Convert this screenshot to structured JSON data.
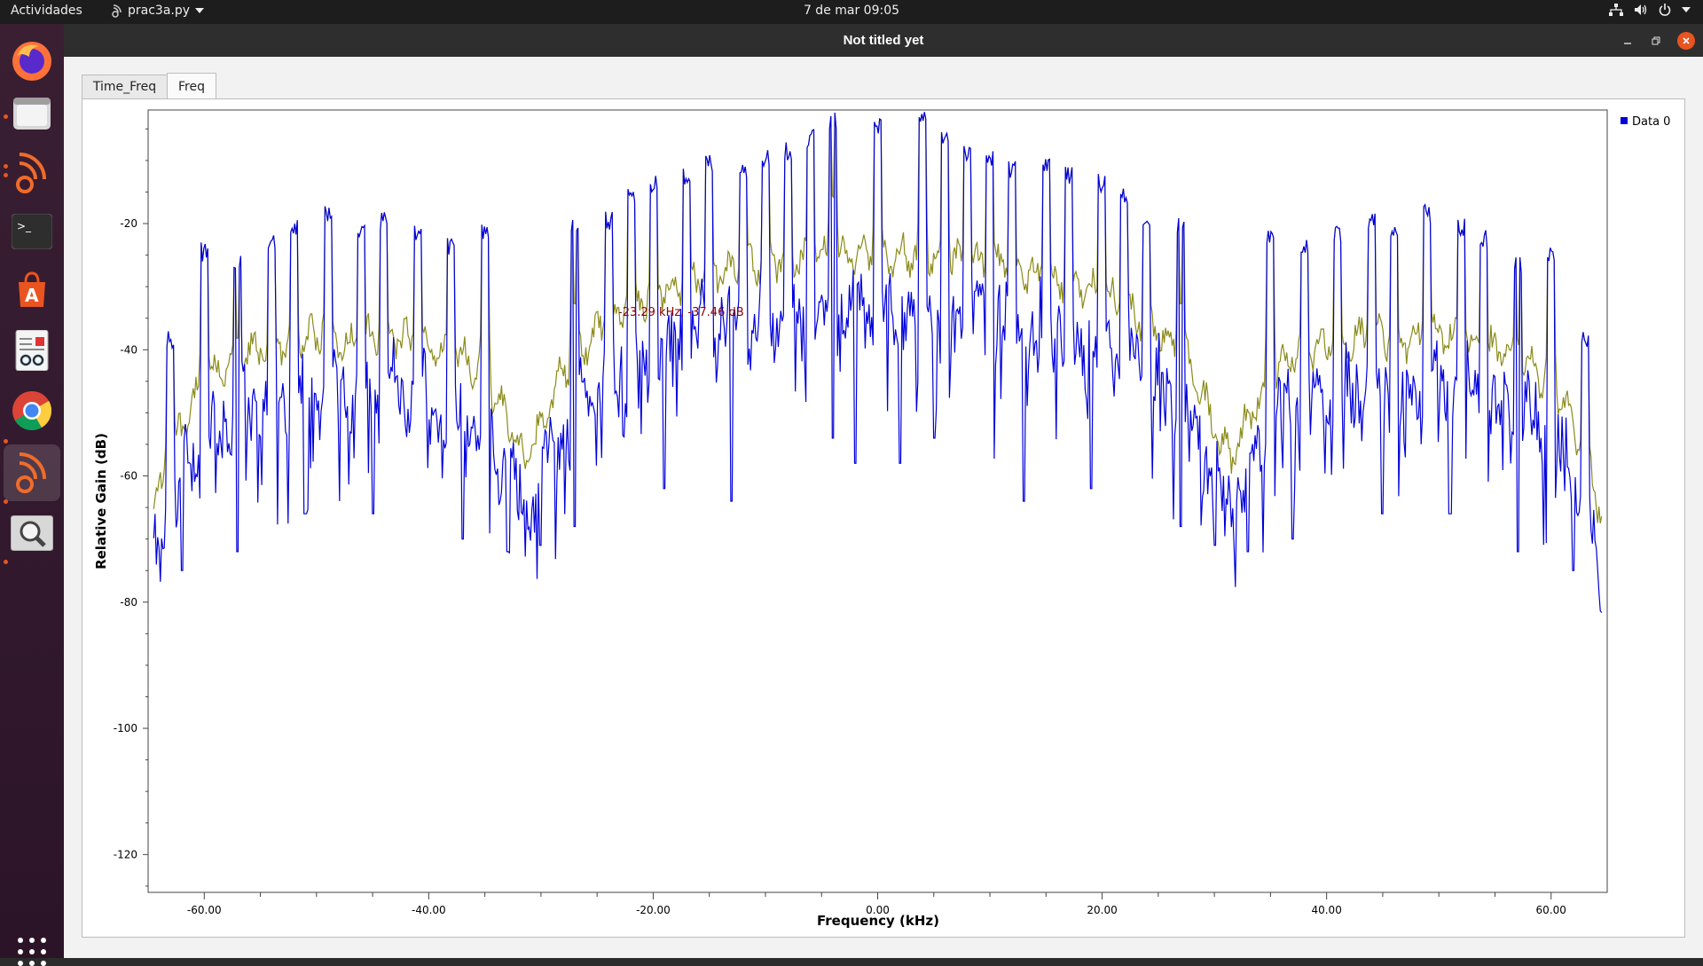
{
  "topbar": {
    "activities": "Actividades",
    "app_name": "prac3a.py",
    "clock": "7 de mar  09:05"
  },
  "window": {
    "title": "Not titled yet"
  },
  "tabs": [
    {
      "label": "Time_Freq",
      "selected": false
    },
    {
      "label": "Freq",
      "selected": true
    }
  ],
  "dock": {
    "items": [
      "firefox-icon",
      "files-icon",
      "gnuradio-icon",
      "terminal-icon",
      "software-center-icon",
      "document-viewer-icon",
      "chrome-icon",
      "gnuradio-icon",
      "image-viewer-icon"
    ],
    "apps_grid": "show-applications-icon"
  },
  "chart_data": {
    "type": "line",
    "xlabel": "Frequency (kHz)",
    "ylabel": "Relative Gain (dB)",
    "xlim": [
      -65,
      65
    ],
    "ylim": [
      -126,
      -2
    ],
    "x_ticks": [
      "-60.00",
      "-40.00",
      "-20.00",
      "0.00",
      "20.00",
      "40.00",
      "60.00"
    ],
    "y_ticks": [
      "-20",
      "-40",
      "-60",
      "-80",
      "-100",
      "-120"
    ],
    "legend": {
      "placement": "top-right",
      "entries": [
        {
          "name": "Data 0",
          "color": "#0000dd"
        }
      ]
    },
    "marker_label": "-23.29 kHz, -37.46 dB",
    "marker": {
      "x": -23.29,
      "y": -37.46
    },
    "series": [
      {
        "name": "Data 0",
        "role": "spectrum",
        "color": "#0000dd"
      },
      {
        "name": "",
        "role": "max-hold",
        "color": "#8b8b1a"
      }
    ],
    "envelope_points": {
      "x": [
        -64.5,
        -63,
        -61,
        -59,
        -57,
        -55,
        -53,
        -51,
        -49,
        -47,
        -45,
        -43,
        -41,
        -39,
        -37,
        -35,
        -33,
        -31.5,
        -30,
        -28,
        -26,
        -24,
        -22,
        -20,
        -18,
        -16,
        -14,
        -12,
        -10,
        -8,
        -6,
        -4,
        -2,
        0,
        2,
        4,
        6,
        8,
        10,
        12,
        14,
        16,
        18,
        20,
        22,
        24,
        26,
        28,
        30,
        31.5,
        33,
        35,
        37,
        39,
        41,
        43,
        45,
        47,
        49,
        51,
        53,
        55,
        57,
        59,
        61,
        63,
        64.5
      ],
      "y": [
        -70,
        -60,
        -52,
        -48,
        -45,
        -44,
        -43,
        -42,
        -42,
        -43,
        -42,
        -42,
        -43,
        -44,
        -45,
        -48,
        -55,
        -62,
        -56,
        -47,
        -43,
        -40,
        -37,
        -35,
        -34,
        -33,
        -32,
        -31,
        -30,
        -30,
        -29,
        -29,
        -29,
        -29,
        -29,
        -29,
        -29,
        -30,
        -30,
        -31,
        -32,
        -33,
        -34,
        -35,
        -37,
        -40,
        -43,
        -47,
        -56,
        -62,
        -55,
        -48,
        -45,
        -44,
        -43,
        -42,
        -42,
        -43,
        -42,
        -42,
        -43,
        -44,
        -45,
        -48,
        -52,
        -60,
        -70
      ]
    },
    "peaks": {
      "x": [
        -63,
        -60,
        -57,
        -54,
        -52,
        -49,
        -46,
        -44,
        -41,
        -38,
        -35,
        -27,
        -24,
        -22,
        -20,
        -17,
        -15,
        -12,
        -10,
        -8,
        -6,
        -4,
        0,
        4,
        6,
        8,
        10,
        12,
        15,
        17,
        20,
        22,
        24,
        27,
        35,
        38,
        41,
        44,
        46,
        49,
        52,
        54,
        57,
        60,
        63
      ],
      "y": [
        -50,
        -36,
        -38,
        -34,
        -32,
        -30,
        -33,
        -31,
        -33,
        -35,
        -33,
        -32,
        -31,
        -27,
        -25,
        -24,
        -22,
        -23,
        -21,
        -20,
        -18,
        -15,
        -16,
        -15,
        -18,
        -20,
        -21,
        -23,
        -22,
        -24,
        -25,
        -27,
        -31,
        -32,
        -33,
        -35,
        -33,
        -31,
        -33,
        -30,
        -32,
        -34,
        -38,
        -36,
        -50
      ]
    },
    "nulls": {
      "x": [
        -62,
        -57,
        -51,
        -45,
        -37,
        -33,
        -30,
        -27,
        -19,
        -13,
        -4,
        -2,
        2,
        5,
        13,
        19,
        27,
        30,
        33,
        37,
        45,
        51,
        57,
        62
      ],
      "y": [
        -75,
        -72,
        -66,
        -66,
        -70,
        -72,
        -71,
        -68,
        -62,
        -64,
        -54,
        -58,
        -58,
        -54,
        -64,
        -62,
        -68,
        -71,
        -72,
        -70,
        -66,
        -66,
        -72,
        -75
      ]
    }
  }
}
